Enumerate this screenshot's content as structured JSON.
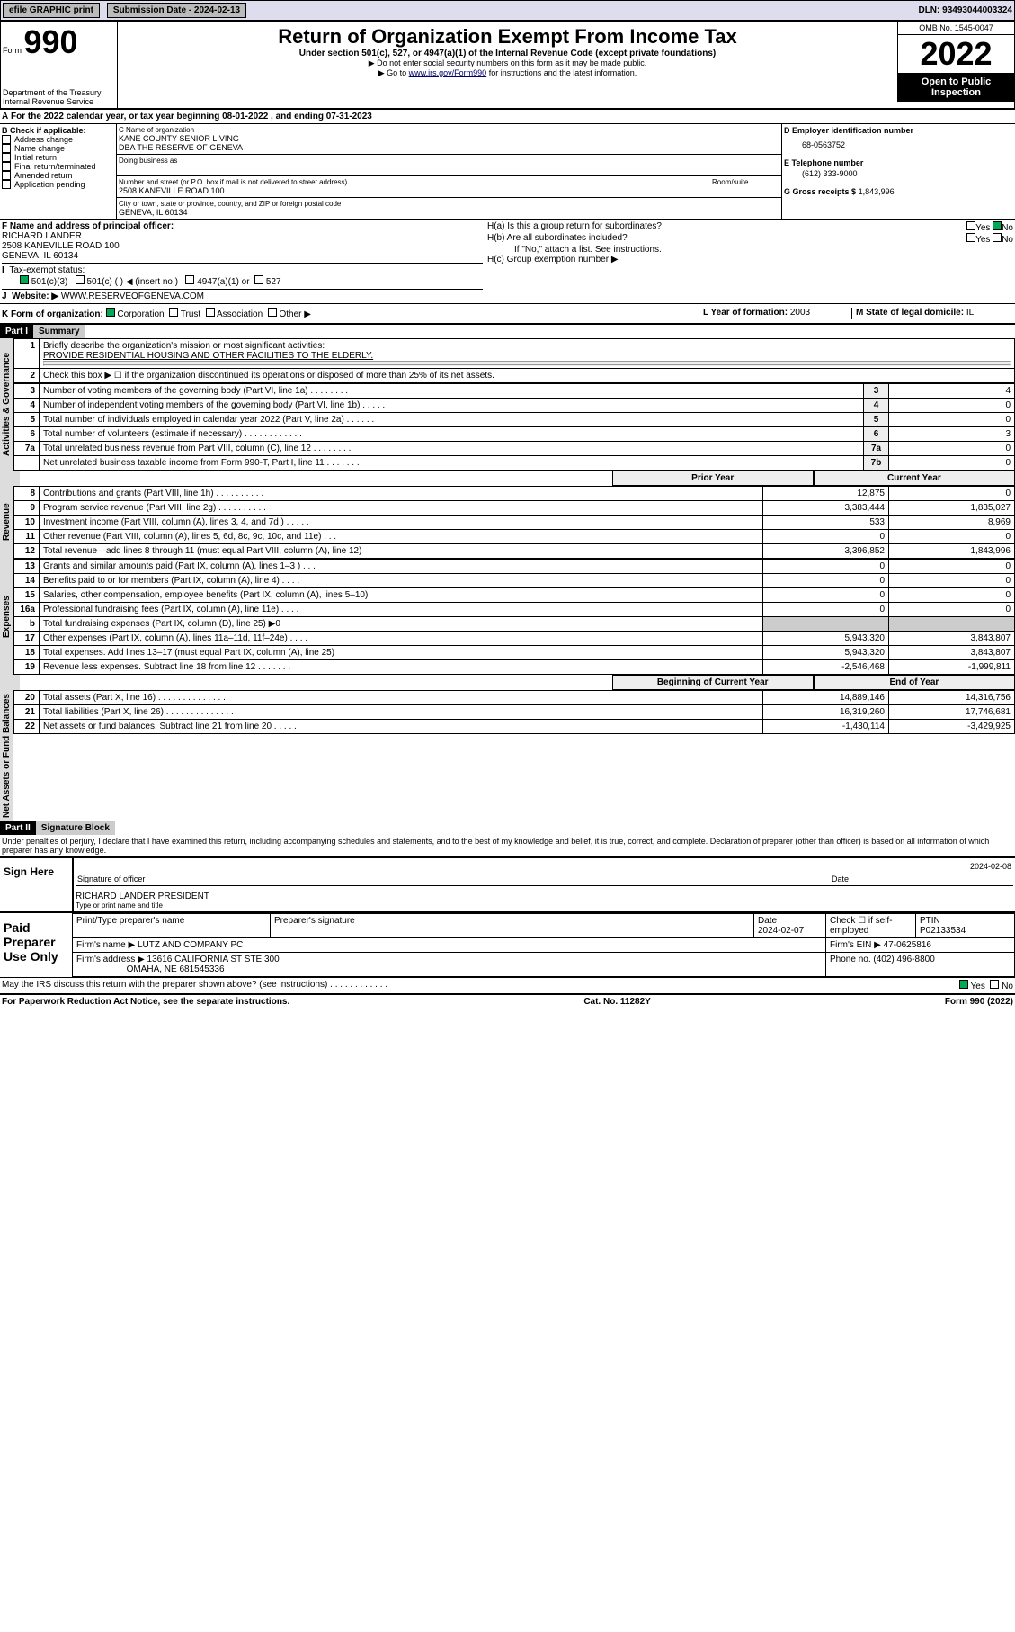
{
  "topbar": {
    "efile": "efile GRAPHIC print",
    "submission_label": "Submission Date - 2024-02-13",
    "dln": "DLN: 93493044003324"
  },
  "header": {
    "form_word": "Form",
    "form_num": "990",
    "title": "Return of Organization Exempt From Income Tax",
    "subtitle": "Under section 501(c), 527, or 4947(a)(1) of the Internal Revenue Code (except private foundations)",
    "hint1": "▶ Do not enter social security numbers on this form as it may be made public.",
    "hint2_pre": "▶ Go to ",
    "hint2_link": "www.irs.gov/Form990",
    "hint2_post": " for instructions and the latest information.",
    "dept": "Department of the Treasury\nInternal Revenue Service",
    "omb": "OMB No. 1545-0047",
    "year": "2022",
    "public": "Open to Public Inspection"
  },
  "row_a": "For the 2022 calendar year, or tax year beginning 08-01-2022    , and ending 07-31-2023",
  "box_b": {
    "title": "B Check if applicable:",
    "items": [
      "Address change",
      "Name change",
      "Initial return",
      "Final return/terminated",
      "Amended return",
      "Application pending"
    ]
  },
  "box_c": {
    "name_label": "C Name of organization",
    "name": "KANE COUNTY SENIOR LIVING",
    "dba": "DBA THE RESERVE OF GENEVA",
    "dba_label": "Doing business as",
    "street_label": "Number and street (or P.O. box if mail is not delivered to street address)",
    "room_label": "Room/suite",
    "street": "2508 KANEVILLE ROAD 100",
    "city_label": "City or town, state or province, country, and ZIP or foreign postal code",
    "city": "GENEVA, IL  60134"
  },
  "box_d": {
    "label": "D Employer identification number",
    "val": "68-0563752"
  },
  "box_e": {
    "label": "E Telephone number",
    "val": "(612) 333-9000"
  },
  "box_g": {
    "label": "G Gross receipts $",
    "val": "1,843,996"
  },
  "box_f": {
    "label": "F  Name and address of principal officer:",
    "name": "RICHARD LANDER",
    "addr1": "2508 KANEVILLE ROAD 100",
    "addr2": "GENEVA, IL  60134"
  },
  "box_h": {
    "ha": "H(a)  Is this a group return for subordinates?",
    "hb": "H(b)  Are all subordinates included?",
    "hb_note": "If \"No,\" attach a list. See instructions.",
    "hc": "H(c)  Group exemption number ▶",
    "yes": "Yes",
    "no": "No"
  },
  "box_i": {
    "label": "Tax-exempt status:",
    "opts": [
      "501(c)(3)",
      "501(c) (   ) ◀ (insert no.)",
      "4947(a)(1) or",
      "527"
    ]
  },
  "box_j": {
    "label": "Website: ▶",
    "val": "WWW.RESERVEOFGENEVA.COM"
  },
  "box_k": {
    "label": "K Form of organization:",
    "opts": [
      "Corporation",
      "Trust",
      "Association",
      "Other ▶"
    ]
  },
  "box_l": {
    "label": "L Year of formation:",
    "val": "2003"
  },
  "box_m": {
    "label": "M State of legal domicile:",
    "val": "IL"
  },
  "part1": {
    "num": "Part I",
    "title": "Summary",
    "side_labels": [
      "Activities & Governance",
      "Revenue",
      "Expenses",
      "Net Assets or Fund Balances"
    ],
    "line1_label": "Briefly describe the organization's mission or most significant activities:",
    "line1_val": "PROVIDE RESIDENTIAL HOUSING AND OTHER FACILITIES TO THE ELDERLY.",
    "line2": "Check this box ▶ ☐  if the organization discontinued its operations or disposed of more than 25% of its net assets.",
    "col_prior": "Prior Year",
    "col_current": "Current Year",
    "col_begin": "Beginning of Current Year",
    "col_end": "End of Year",
    "rows_top": [
      {
        "n": "3",
        "t": "Number of voting members of the governing body (Part VI, line 1a)  .    .    .    .    .    .    .    .",
        "l": "3",
        "v": "4"
      },
      {
        "n": "4",
        "t": "Number of independent voting members of the governing body (Part VI, line 1b)  .    .    .    .    .",
        "l": "4",
        "v": "0"
      },
      {
        "n": "5",
        "t": "Total number of individuals employed in calendar year 2022 (Part V, line 2a)  .    .    .    .    .    .",
        "l": "5",
        "v": "0"
      },
      {
        "n": "6",
        "t": "Total number of volunteers (estimate if necessary)  .    .    .    .    .    .    .    .    .    .    .    .",
        "l": "6",
        "v": "3"
      },
      {
        "n": "7a",
        "t": "Total unrelated business revenue from Part VIII, column (C), line 12  .    .    .    .    .    .    .    .",
        "l": "7a",
        "v": "0"
      },
      {
        "n": "",
        "t": "Net unrelated business taxable income from Form 990-T, Part I, line 11  .    .    .    .    .    .    .",
        "l": "7b",
        "v": "0"
      }
    ],
    "rows_rev": [
      {
        "n": "8",
        "t": "Contributions and grants (Part VIII, line 1h)  .    .    .    .    .    .    .    .    .    .",
        "p": "12,875",
        "c": "0"
      },
      {
        "n": "9",
        "t": "Program service revenue (Part VIII, line 2g)  .    .    .    .    .    .    .    .    .    .",
        "p": "3,383,444",
        "c": "1,835,027"
      },
      {
        "n": "10",
        "t": "Investment income (Part VIII, column (A), lines 3, 4, and 7d )  .    .    .    .    .",
        "p": "533",
        "c": "8,969"
      },
      {
        "n": "11",
        "t": "Other revenue (Part VIII, column (A), lines 5, 6d, 8c, 9c, 10c, and 11e)  .    .    .",
        "p": "0",
        "c": "0"
      },
      {
        "n": "12",
        "t": "Total revenue—add lines 8 through 11 (must equal Part VIII, column (A), line 12)",
        "p": "3,396,852",
        "c": "1,843,996"
      }
    ],
    "rows_exp": [
      {
        "n": "13",
        "t": "Grants and similar amounts paid (Part IX, column (A), lines 1–3 )  .    .    .",
        "p": "0",
        "c": "0"
      },
      {
        "n": "14",
        "t": "Benefits paid to or for members (Part IX, column (A), line 4)  .    .    .    .",
        "p": "0",
        "c": "0"
      },
      {
        "n": "15",
        "t": "Salaries, other compensation, employee benefits (Part IX, column (A), lines 5–10)",
        "p": "0",
        "c": "0"
      },
      {
        "n": "16a",
        "t": "Professional fundraising fees (Part IX, column (A), line 11e)  .    .    .    .",
        "p": "0",
        "c": "0"
      },
      {
        "n": "b",
        "t": "Total fundraising expenses (Part IX, column (D), line 25) ▶0",
        "p": "",
        "c": "",
        "shade": true
      },
      {
        "n": "17",
        "t": "Other expenses (Part IX, column (A), lines 11a–11d, 11f–24e)  .    .    .    .",
        "p": "5,943,320",
        "c": "3,843,807"
      },
      {
        "n": "18",
        "t": "Total expenses. Add lines 13–17 (must equal Part IX, column (A), line 25)",
        "p": "5,943,320",
        "c": "3,843,807"
      },
      {
        "n": "19",
        "t": "Revenue less expenses. Subtract line 18 from line 12  .    .    .    .    .    .    .",
        "p": "-2,546,468",
        "c": "-1,999,811"
      }
    ],
    "rows_net": [
      {
        "n": "20",
        "t": "Total assets (Part X, line 16)  .    .    .    .    .    .    .    .    .    .    .    .    .    .",
        "p": "14,889,146",
        "c": "14,316,756"
      },
      {
        "n": "21",
        "t": "Total liabilities (Part X, line 26)  .    .    .    .    .    .    .    .    .    .    .    .    .    .",
        "p": "16,319,260",
        "c": "17,746,681"
      },
      {
        "n": "22",
        "t": "Net assets or fund balances. Subtract line 21 from line 20  .    .    .    .    .",
        "p": "-1,430,114",
        "c": "-3,429,925"
      }
    ]
  },
  "part2": {
    "num": "Part II",
    "title": "Signature Block",
    "penalty": "Under penalties of perjury, I declare that I have examined this return, including accompanying schedules and statements, and to the best of my knowledge and belief, it is true, correct, and complete. Declaration of preparer (other than officer) is based on all information of which preparer has any knowledge.",
    "sign_here": "Sign Here",
    "sig_officer": "Signature of officer",
    "sig_date": "2024-02-08",
    "date_label": "Date",
    "officer_name": "RICHARD LANDER  PRESIDENT",
    "officer_name_label": "Type or print name and title",
    "paid": "Paid Preparer Use Only",
    "prep_name_label": "Print/Type preparer's name",
    "prep_sig_label": "Preparer's signature",
    "prep_date_label": "Date",
    "prep_date": "2024-02-07",
    "check_if": "Check ☐ if self-employed",
    "ptin_label": "PTIN",
    "ptin": "P02133534",
    "firm_name_label": "Firm's name    ▶",
    "firm_name": "LUTZ AND COMPANY PC",
    "firm_ein_label": "Firm's EIN ▶",
    "firm_ein": "47-0625816",
    "firm_addr_label": "Firm's address ▶",
    "firm_addr1": "13616 CALIFORNIA ST STE 300",
    "firm_addr2": "OMAHA, NE  681545336",
    "phone_label": "Phone no.",
    "phone": "(402) 496-8800",
    "may_irs": "May the IRS discuss this return with the preparer shown above? (see instructions)  .    .    .    .    .    .    .    .    .    .    .    .",
    "yes": "Yes",
    "no": "No"
  },
  "footer": {
    "left": "For Paperwork Reduction Act Notice, see the separate instructions.",
    "mid": "Cat. No. 11282Y",
    "right": "Form 990 (2022)"
  }
}
